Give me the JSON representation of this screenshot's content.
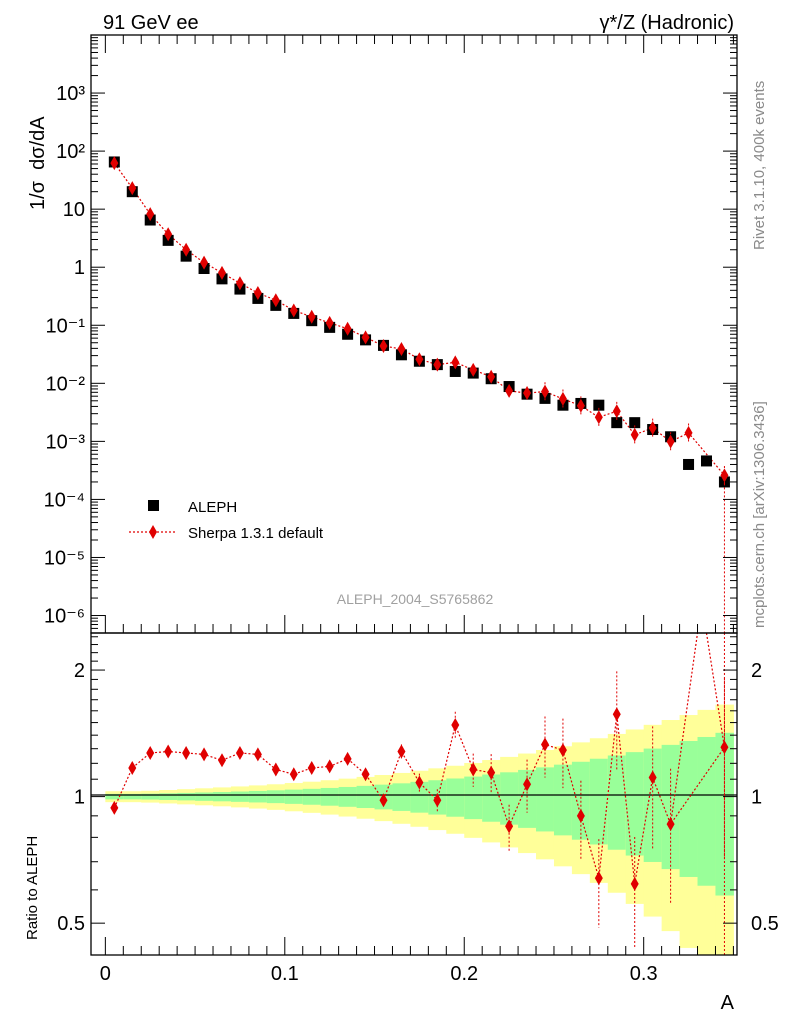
{
  "header": {
    "left": "91 GeV ee",
    "right": "γ*/Z (Hadronic)"
  },
  "side_labels": {
    "rivet": "Rivet 3.1.10,  400k events",
    "mcplots": "mcplots.cern.ch [arXiv:1306.3436]"
  },
  "watermark": "ALEPH_2004_S5765862",
  "legend": {
    "data_label": "ALEPH",
    "mc_label": "Sherpa 1.3.1 default"
  },
  "chart_data": [
    {
      "type": "scatter",
      "panel": "main",
      "ylabel": "1/σ  dσ/dA",
      "yscale": "log",
      "ylim": [
        5e-07,
        10000
      ],
      "xlim": [
        -0.008,
        0.352
      ],
      "y_tick_labels": [
        "10⁻⁶",
        "10⁻⁵",
        "10⁻⁴",
        "10⁻³",
        "10⁻²",
        "10⁻¹",
        "1",
        "10",
        "10²",
        "10³"
      ],
      "legend_position": "bottom-left",
      "x": [
        0.005,
        0.015,
        0.025,
        0.035,
        0.045,
        0.055,
        0.065,
        0.075,
        0.085,
        0.095,
        0.105,
        0.115,
        0.125,
        0.135,
        0.145,
        0.155,
        0.165,
        0.175,
        0.185,
        0.195,
        0.205,
        0.215,
        0.225,
        0.235,
        0.245,
        0.255,
        0.265,
        0.275,
        0.285,
        0.295,
        0.305,
        0.315,
        0.325,
        0.335,
        0.345
      ],
      "series": [
        {
          "name": "ALEPH",
          "values": [
            65,
            20,
            6.5,
            2.9,
            1.55,
            0.95,
            0.63,
            0.42,
            0.29,
            0.22,
            0.16,
            0.12,
            0.092,
            0.07,
            0.056,
            0.045,
            0.031,
            0.024,
            0.021,
            0.016,
            0.015,
            0.012,
            0.0088,
            0.0065,
            0.0055,
            0.0042,
            0.0045,
            0.0042,
            0.0021,
            0.0021,
            0.0016,
            0.0012,
            0.0004,
            0.00046,
            0.0002
          ]
        },
        {
          "name": "Sherpa 1.3.1 default",
          "values": [
            62,
            23,
            8.2,
            3.7,
            2.0,
            1.2,
            0.8,
            0.53,
            0.36,
            0.27,
            0.18,
            0.14,
            0.11,
            0.087,
            0.062,
            0.044,
            0.039,
            0.026,
            0.021,
            0.023,
            0.017,
            0.013,
            0.0074,
            0.0068,
            0.0072,
            0.0054,
            0.0041,
            0.0026,
            0.0033,
            0.0013,
            0.0017,
            0.00099,
            0.0014,
            null,
            0.00026
          ]
        }
      ]
    },
    {
      "type": "scatter",
      "panel": "ratio",
      "xlabel": "A",
      "ylabel": "Ratio to ALEPH",
      "yscale": "log",
      "ylim": [
        0.42,
        2.45
      ],
      "xlim": [
        -0.008,
        0.352
      ],
      "x_tick_labels": [
        "0",
        "0.1",
        "0.2",
        "0.3"
      ],
      "y_tick_labels": [
        "0.5",
        "1",
        "2"
      ],
      "x": [
        0.005,
        0.015,
        0.025,
        0.035,
        0.045,
        0.055,
        0.065,
        0.075,
        0.085,
        0.095,
        0.105,
        0.115,
        0.125,
        0.135,
        0.145,
        0.155,
        0.165,
        0.175,
        0.185,
        0.195,
        0.205,
        0.215,
        0.225,
        0.235,
        0.245,
        0.255,
        0.265,
        0.275,
        0.285,
        0.295,
        0.305,
        0.315,
        0.325,
        0.335,
        0.345
      ],
      "series": [
        {
          "name": "Sherpa 1.3.1 default",
          "values": [
            0.94,
            1.17,
            1.27,
            1.28,
            1.27,
            1.26,
            1.22,
            1.27,
            1.26,
            1.16,
            1.13,
            1.17,
            1.18,
            1.23,
            1.13,
            0.98,
            1.28,
            1.08,
            0.98,
            1.48,
            1.16,
            1.14,
            0.85,
            1.07,
            1.33,
            1.29,
            0.9,
            0.64,
            1.57,
            0.62,
            1.11,
            0.86,
            null,
            null,
            1.31
          ]
        }
      ]
    }
  ]
}
